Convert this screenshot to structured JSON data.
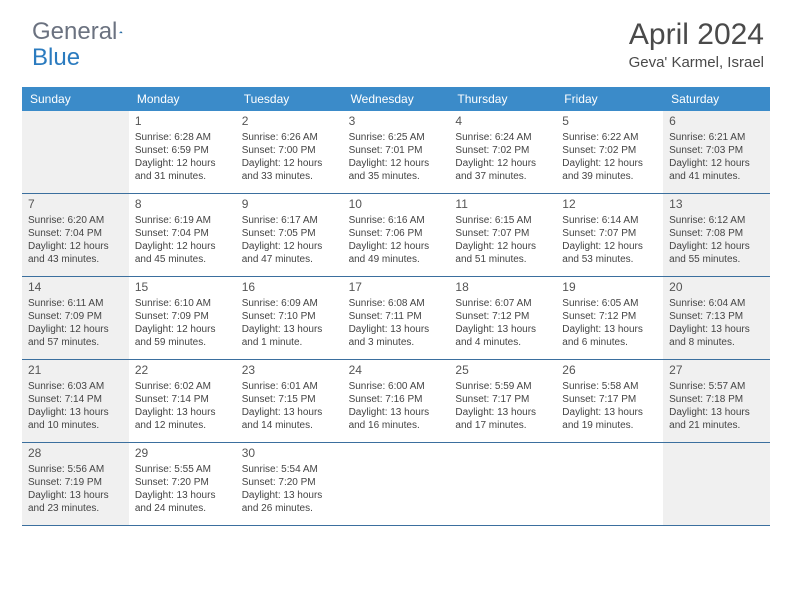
{
  "logo": {
    "text1": "General",
    "text2": "Blue"
  },
  "title": "April 2024",
  "location": "Geva' Karmel, Israel",
  "colors": {
    "header_bg": "#3b8bc9",
    "header_text": "#ffffff",
    "border": "#3b6f9e",
    "weekend_bg": "#f0f0f0",
    "body_text": "#444444",
    "logo_gray": "#6b7280",
    "logo_blue": "#2b7bbf"
  },
  "day_names": [
    "Sunday",
    "Monday",
    "Tuesday",
    "Wednesday",
    "Thursday",
    "Friday",
    "Saturday"
  ],
  "weeks": [
    [
      null,
      {
        "n": "1",
        "sr": "Sunrise: 6:28 AM",
        "ss": "Sunset: 6:59 PM",
        "d1": "Daylight: 12 hours",
        "d2": "and 31 minutes."
      },
      {
        "n": "2",
        "sr": "Sunrise: 6:26 AM",
        "ss": "Sunset: 7:00 PM",
        "d1": "Daylight: 12 hours",
        "d2": "and 33 minutes."
      },
      {
        "n": "3",
        "sr": "Sunrise: 6:25 AM",
        "ss": "Sunset: 7:01 PM",
        "d1": "Daylight: 12 hours",
        "d2": "and 35 minutes."
      },
      {
        "n": "4",
        "sr": "Sunrise: 6:24 AM",
        "ss": "Sunset: 7:02 PM",
        "d1": "Daylight: 12 hours",
        "d2": "and 37 minutes."
      },
      {
        "n": "5",
        "sr": "Sunrise: 6:22 AM",
        "ss": "Sunset: 7:02 PM",
        "d1": "Daylight: 12 hours",
        "d2": "and 39 minutes."
      },
      {
        "n": "6",
        "sr": "Sunrise: 6:21 AM",
        "ss": "Sunset: 7:03 PM",
        "d1": "Daylight: 12 hours",
        "d2": "and 41 minutes."
      }
    ],
    [
      {
        "n": "7",
        "sr": "Sunrise: 6:20 AM",
        "ss": "Sunset: 7:04 PM",
        "d1": "Daylight: 12 hours",
        "d2": "and 43 minutes."
      },
      {
        "n": "8",
        "sr": "Sunrise: 6:19 AM",
        "ss": "Sunset: 7:04 PM",
        "d1": "Daylight: 12 hours",
        "d2": "and 45 minutes."
      },
      {
        "n": "9",
        "sr": "Sunrise: 6:17 AM",
        "ss": "Sunset: 7:05 PM",
        "d1": "Daylight: 12 hours",
        "d2": "and 47 minutes."
      },
      {
        "n": "10",
        "sr": "Sunrise: 6:16 AM",
        "ss": "Sunset: 7:06 PM",
        "d1": "Daylight: 12 hours",
        "d2": "and 49 minutes."
      },
      {
        "n": "11",
        "sr": "Sunrise: 6:15 AM",
        "ss": "Sunset: 7:07 PM",
        "d1": "Daylight: 12 hours",
        "d2": "and 51 minutes."
      },
      {
        "n": "12",
        "sr": "Sunrise: 6:14 AM",
        "ss": "Sunset: 7:07 PM",
        "d1": "Daylight: 12 hours",
        "d2": "and 53 minutes."
      },
      {
        "n": "13",
        "sr": "Sunrise: 6:12 AM",
        "ss": "Sunset: 7:08 PM",
        "d1": "Daylight: 12 hours",
        "d2": "and 55 minutes."
      }
    ],
    [
      {
        "n": "14",
        "sr": "Sunrise: 6:11 AM",
        "ss": "Sunset: 7:09 PM",
        "d1": "Daylight: 12 hours",
        "d2": "and 57 minutes."
      },
      {
        "n": "15",
        "sr": "Sunrise: 6:10 AM",
        "ss": "Sunset: 7:09 PM",
        "d1": "Daylight: 12 hours",
        "d2": "and 59 minutes."
      },
      {
        "n": "16",
        "sr": "Sunrise: 6:09 AM",
        "ss": "Sunset: 7:10 PM",
        "d1": "Daylight: 13 hours",
        "d2": "and 1 minute."
      },
      {
        "n": "17",
        "sr": "Sunrise: 6:08 AM",
        "ss": "Sunset: 7:11 PM",
        "d1": "Daylight: 13 hours",
        "d2": "and 3 minutes."
      },
      {
        "n": "18",
        "sr": "Sunrise: 6:07 AM",
        "ss": "Sunset: 7:12 PM",
        "d1": "Daylight: 13 hours",
        "d2": "and 4 minutes."
      },
      {
        "n": "19",
        "sr": "Sunrise: 6:05 AM",
        "ss": "Sunset: 7:12 PM",
        "d1": "Daylight: 13 hours",
        "d2": "and 6 minutes."
      },
      {
        "n": "20",
        "sr": "Sunrise: 6:04 AM",
        "ss": "Sunset: 7:13 PM",
        "d1": "Daylight: 13 hours",
        "d2": "and 8 minutes."
      }
    ],
    [
      {
        "n": "21",
        "sr": "Sunrise: 6:03 AM",
        "ss": "Sunset: 7:14 PM",
        "d1": "Daylight: 13 hours",
        "d2": "and 10 minutes."
      },
      {
        "n": "22",
        "sr": "Sunrise: 6:02 AM",
        "ss": "Sunset: 7:14 PM",
        "d1": "Daylight: 13 hours",
        "d2": "and 12 minutes."
      },
      {
        "n": "23",
        "sr": "Sunrise: 6:01 AM",
        "ss": "Sunset: 7:15 PM",
        "d1": "Daylight: 13 hours",
        "d2": "and 14 minutes."
      },
      {
        "n": "24",
        "sr": "Sunrise: 6:00 AM",
        "ss": "Sunset: 7:16 PM",
        "d1": "Daylight: 13 hours",
        "d2": "and 16 minutes."
      },
      {
        "n": "25",
        "sr": "Sunrise: 5:59 AM",
        "ss": "Sunset: 7:17 PM",
        "d1": "Daylight: 13 hours",
        "d2": "and 17 minutes."
      },
      {
        "n": "26",
        "sr": "Sunrise: 5:58 AM",
        "ss": "Sunset: 7:17 PM",
        "d1": "Daylight: 13 hours",
        "d2": "and 19 minutes."
      },
      {
        "n": "27",
        "sr": "Sunrise: 5:57 AM",
        "ss": "Sunset: 7:18 PM",
        "d1": "Daylight: 13 hours",
        "d2": "and 21 minutes."
      }
    ],
    [
      {
        "n": "28",
        "sr": "Sunrise: 5:56 AM",
        "ss": "Sunset: 7:19 PM",
        "d1": "Daylight: 13 hours",
        "d2": "and 23 minutes."
      },
      {
        "n": "29",
        "sr": "Sunrise: 5:55 AM",
        "ss": "Sunset: 7:20 PM",
        "d1": "Daylight: 13 hours",
        "d2": "and 24 minutes."
      },
      {
        "n": "30",
        "sr": "Sunrise: 5:54 AM",
        "ss": "Sunset: 7:20 PM",
        "d1": "Daylight: 13 hours",
        "d2": "and 26 minutes."
      },
      null,
      null,
      null,
      null
    ]
  ]
}
